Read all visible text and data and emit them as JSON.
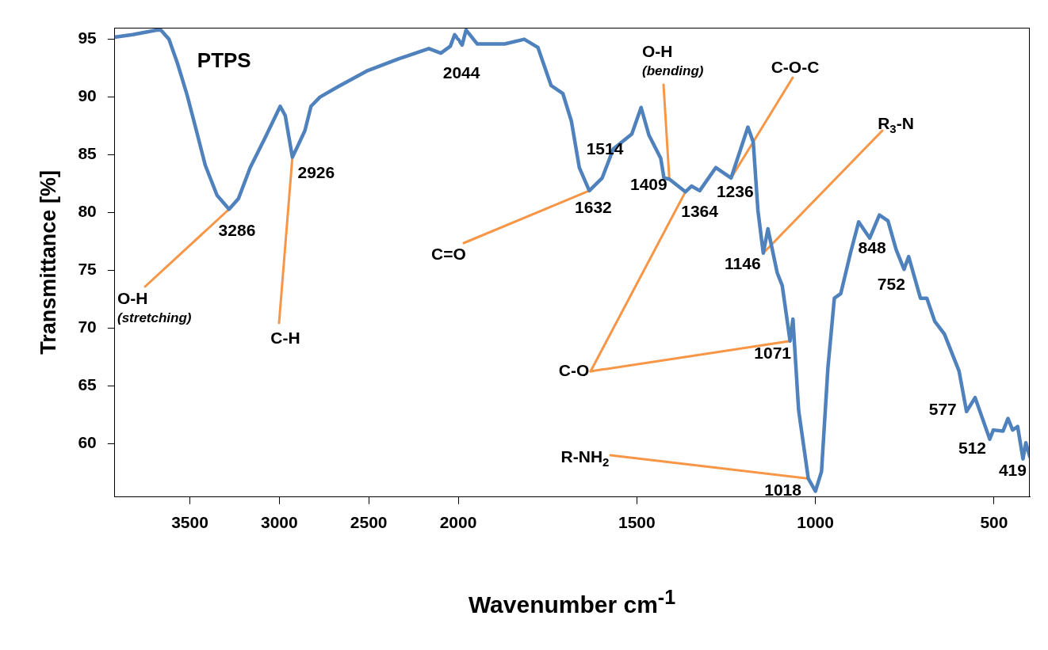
{
  "chart_data": [
    {
      "type": "line",
      "title": "PTPS",
      "ylabel": "Transmittance [%]",
      "x": [
        3915,
        3820,
        3686,
        3662,
        3617,
        3569,
        3516,
        3467,
        3414,
        3348,
        3281,
        3229,
        3163,
        3079,
        2995,
        2967,
        2927,
        2899,
        2857,
        2823,
        2773,
        2672,
        2505,
        2334,
        2164,
        2097,
        2044,
        2020,
        2000
      ],
      "series": [
        {
          "color": "#4f81bd",
          "values": [
            95.2,
            95.4,
            95.8,
            95.8,
            95.0,
            92.9,
            90.2,
            87.3,
            84.1,
            81.5,
            80.3,
            81.2,
            83.9,
            86.5,
            89.2,
            88.4,
            84.8,
            85.7,
            87.1,
            89.2,
            90.0,
            90.9,
            92.3,
            93.3,
            94.2,
            93.8,
            94.4,
            95.4,
            95.0
          ]
        }
      ],
      "xlim": [
        3920,
        2000
      ],
      "xticks": [
        3500,
        3000,
        2500
      ],
      "ylim": [
        55.4,
        96
      ],
      "yticks": [
        60,
        65,
        70,
        75,
        80,
        85,
        90,
        95
      ],
      "legend": false,
      "marker": "none",
      "line_style": "solid",
      "annotations": [
        {
          "text": "3286",
          "x": 3281,
          "y": 80.3
        },
        {
          "text": "2926",
          "x": 2927,
          "y": 84.8
        },
        {
          "text": "2044",
          "x": 2044,
          "y": 94.4
        },
        {
          "text": "O-H\n(stretching)",
          "x": 3281,
          "y": 80.3
        },
        {
          "text": "C-H",
          "x": 2927,
          "y": 84.8
        }
      ]
    },
    {
      "type": "line",
      "xlabel": "Wavenumber cm$^{-1}$",
      "x": [
        2000,
        1989,
        1978,
        1947,
        1870,
        1815,
        1777,
        1740,
        1707,
        1683,
        1661,
        1633,
        1597,
        1566,
        1514,
        1488,
        1466,
        1433,
        1424,
        1409,
        1364,
        1347,
        1324,
        1279,
        1236,
        1189,
        1174,
        1161,
        1146,
        1133,
        1107,
        1093,
        1071,
        1063,
        1047,
        1020,
        1000,
        983,
        965,
        947,
        929,
        902,
        879,
        848,
        821,
        797,
        774,
        752,
        739,
        706,
        688,
        666,
        639,
        598,
        577,
        553,
        512,
        502,
        475,
        461,
        448,
        434,
        419,
        411,
        400
      ],
      "series": [
        {
          "color": "#4f81bd",
          "values": [
            95.0,
            94.5,
            95.8,
            94.6,
            94.6,
            95.0,
            94.3,
            91.0,
            90.3,
            87.9,
            83.9,
            81.9,
            83.0,
            85.5,
            86.8,
            89.1,
            86.7,
            84.7,
            83.0,
            82.9,
            81.8,
            82.3,
            81.9,
            83.9,
            83.0,
            87.4,
            86.1,
            80.2,
            76.5,
            78.6,
            74.8,
            73.7,
            68.9,
            70.8,
            62.9,
            57.0,
            55.9,
            57.6,
            66.6,
            72.6,
            73.0,
            76.5,
            79.2,
            77.8,
            79.8,
            79.3,
            76.8,
            75.1,
            76.2,
            72.6,
            72.6,
            70.6,
            69.5,
            66.3,
            62.8,
            64.0,
            60.4,
            61.2,
            61.1,
            62.2,
            61.2,
            61.5,
            58.7,
            60.1,
            58.9
          ]
        }
      ],
      "xlim": [
        2000,
        400
      ],
      "xticks": [
        2000,
        1500,
        1000,
        500
      ],
      "ylim": [
        55.4,
        96
      ],
      "tick_labels": "x",
      "legend": false,
      "marker": "none",
      "line_style": "solid",
      "annotations": [
        {
          "text": "1632",
          "x": 1633,
          "y": 81.9
        },
        {
          "text": "1514",
          "x": 1514,
          "y": 86.8
        },
        {
          "text": "1409",
          "x": 1409,
          "y": 82.9
        },
        {
          "text": "1364",
          "x": 1364,
          "y": 81.8
        },
        {
          "text": "1236",
          "x": 1236,
          "y": 83.0
        },
        {
          "text": "1146",
          "x": 1146,
          "y": 76.5
        },
        {
          "text": "1071",
          "x": 1071,
          "y": 68.9
        },
        {
          "text": "1018",
          "x": 1020,
          "y": 57.0
        },
        {
          "text": "848",
          "x": 848,
          "y": 77.8
        },
        {
          "text": "752",
          "x": 752,
          "y": 75.1
        },
        {
          "text": "577",
          "x": 577,
          "y": 62.8
        },
        {
          "text": "512",
          "x": 512,
          "y": 60.4
        },
        {
          "text": "419",
          "x": 419,
          "y": 58.7
        },
        {
          "text": "C=O",
          "x": 1633,
          "y": 81.9
        },
        {
          "text": "O-H\n(bending)",
          "x": 1409,
          "y": 82.9
        },
        {
          "text": "C-O-C",
          "x": 1236,
          "y": 83.0
        },
        {
          "text": "R$_{3}$-N",
          "x": 1146,
          "y": 76.5
        },
        {
          "text": "C-O",
          "x": 1364,
          "y": 81.8
        },
        {
          "text": "R-NH$_{2}$",
          "x": 1020,
          "y": 57.0
        }
      ]
    }
  ]
}
